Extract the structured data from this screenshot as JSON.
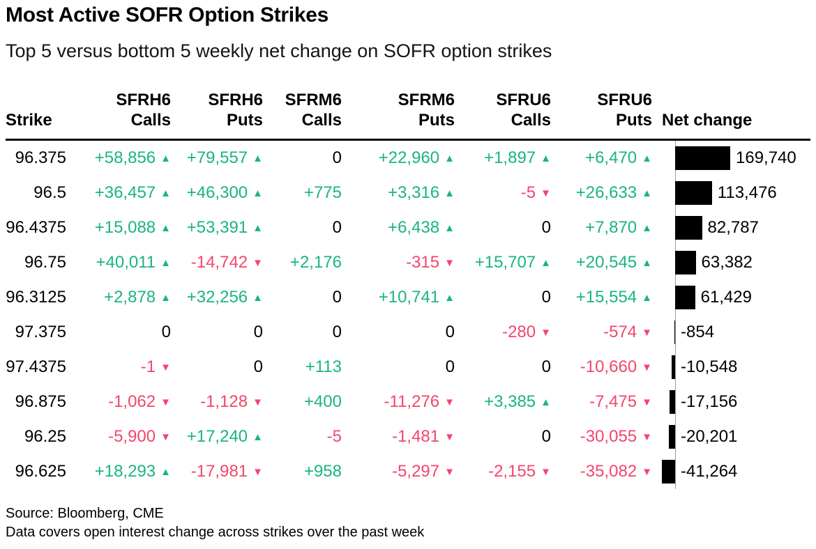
{
  "title": "Most Active SOFR Option Strikes",
  "subtitle": "Top 5 versus bottom 5 weekly net change on SOFR option strikes",
  "footer": {
    "source": "Source: Bloomberg, CME",
    "note": "Data covers open interest change across strikes over the past week"
  },
  "colors": {
    "positive": "#1ab57d",
    "negative": "#f4456b",
    "bar": "#000000",
    "axis": "#9a9a9a"
  },
  "glyphs": {
    "up": "▲",
    "down": "▼"
  },
  "table": {
    "columns": [
      {
        "id": "strike",
        "label": "Strike",
        "align": "left"
      },
      {
        "id": "sfrh6-calls",
        "top": "SFRH6",
        "label": "Calls"
      },
      {
        "id": "sfrh6-puts",
        "top": "SFRH6",
        "label": "Puts"
      },
      {
        "id": "sfrm6-calls",
        "top": "SFRM6",
        "label": "Calls"
      },
      {
        "id": "sfrm6-puts",
        "top": "SFRM6",
        "label": "Puts"
      },
      {
        "id": "sfru6-calls",
        "top": "SFRU6",
        "label": "Calls"
      },
      {
        "id": "sfru6-puts",
        "top": "SFRU6",
        "label": "Puts"
      },
      {
        "id": "net-change",
        "label": "Net change",
        "align": "net"
      }
    ],
    "rows": [
      {
        "strike": "96.375",
        "cells": [
          {
            "t": "+58,856",
            "tone": "pos",
            "a": "up"
          },
          {
            "t": "+79,557",
            "tone": "pos",
            "a": "up"
          },
          {
            "t": "0",
            "tone": "zero"
          },
          {
            "t": "+22,960",
            "tone": "pos",
            "a": "up"
          },
          {
            "t": "+1,897",
            "tone": "pos",
            "a": "up"
          },
          {
            "t": "+6,470",
            "tone": "pos",
            "a": "up"
          }
        ],
        "net": {
          "value": 169740,
          "label": "169,740"
        }
      },
      {
        "strike": "96.5",
        "cells": [
          {
            "t": "+36,457",
            "tone": "pos",
            "a": "up"
          },
          {
            "t": "+46,300",
            "tone": "pos",
            "a": "up"
          },
          {
            "t": "+775",
            "tone": "pos"
          },
          {
            "t": "+3,316",
            "tone": "pos",
            "a": "up"
          },
          {
            "t": "-5",
            "tone": "neg",
            "a": "down"
          },
          {
            "t": "+26,633",
            "tone": "pos",
            "a": "up"
          }
        ],
        "net": {
          "value": 113476,
          "label": "113,476"
        }
      },
      {
        "strike": "96.4375",
        "cells": [
          {
            "t": "+15,088",
            "tone": "pos",
            "a": "up"
          },
          {
            "t": "+53,391",
            "tone": "pos",
            "a": "up"
          },
          {
            "t": "0",
            "tone": "zero"
          },
          {
            "t": "+6,438",
            "tone": "pos",
            "a": "up"
          },
          {
            "t": "0",
            "tone": "zero"
          },
          {
            "t": "+7,870",
            "tone": "pos",
            "a": "up"
          }
        ],
        "net": {
          "value": 82787,
          "label": "82,787"
        }
      },
      {
        "strike": "96.75",
        "cells": [
          {
            "t": "+40,011",
            "tone": "pos",
            "a": "up"
          },
          {
            "t": "-14,742",
            "tone": "neg",
            "a": "down"
          },
          {
            "t": "+2,176",
            "tone": "pos"
          },
          {
            "t": "-315",
            "tone": "neg",
            "a": "down"
          },
          {
            "t": "+15,707",
            "tone": "pos",
            "a": "up"
          },
          {
            "t": "+20,545",
            "tone": "pos",
            "a": "up"
          }
        ],
        "net": {
          "value": 63382,
          "label": "63,382"
        }
      },
      {
        "strike": "96.3125",
        "cells": [
          {
            "t": "+2,878",
            "tone": "pos",
            "a": "up"
          },
          {
            "t": "+32,256",
            "tone": "pos",
            "a": "up"
          },
          {
            "t": "0",
            "tone": "zero"
          },
          {
            "t": "+10,741",
            "tone": "pos",
            "a": "up"
          },
          {
            "t": "0",
            "tone": "zero"
          },
          {
            "t": "+15,554",
            "tone": "pos",
            "a": "up"
          }
        ],
        "net": {
          "value": 61429,
          "label": "61,429"
        }
      },
      {
        "strike": "97.375",
        "cells": [
          {
            "t": "0",
            "tone": "zero"
          },
          {
            "t": "0",
            "tone": "zero"
          },
          {
            "t": "0",
            "tone": "zero"
          },
          {
            "t": "0",
            "tone": "zero"
          },
          {
            "t": "-280",
            "tone": "neg",
            "a": "down"
          },
          {
            "t": "-574",
            "tone": "neg",
            "a": "down"
          }
        ],
        "net": {
          "value": -854,
          "label": "-854"
        }
      },
      {
        "strike": "97.4375",
        "cells": [
          {
            "t": "-1",
            "tone": "neg",
            "a": "down"
          },
          {
            "t": "0",
            "tone": "zero"
          },
          {
            "t": "+113",
            "tone": "pos"
          },
          {
            "t": "0",
            "tone": "zero"
          },
          {
            "t": "0",
            "tone": "zero"
          },
          {
            "t": "-10,660",
            "tone": "neg",
            "a": "down"
          }
        ],
        "net": {
          "value": -10548,
          "label": "-10,548"
        }
      },
      {
        "strike": "96.875",
        "cells": [
          {
            "t": "-1,062",
            "tone": "neg",
            "a": "down"
          },
          {
            "t": "-1,128",
            "tone": "neg",
            "a": "down"
          },
          {
            "t": "+400",
            "tone": "pos"
          },
          {
            "t": "-11,276",
            "tone": "neg",
            "a": "down"
          },
          {
            "t": "+3,385",
            "tone": "pos",
            "a": "up"
          },
          {
            "t": "-7,475",
            "tone": "neg",
            "a": "down"
          }
        ],
        "net": {
          "value": -17156,
          "label": "-17,156"
        }
      },
      {
        "strike": "96.25",
        "cells": [
          {
            "t": "-5,900",
            "tone": "neg",
            "a": "down"
          },
          {
            "t": "+17,240",
            "tone": "pos",
            "a": "up"
          },
          {
            "t": "-5",
            "tone": "neg"
          },
          {
            "t": "-1,481",
            "tone": "neg",
            "a": "down"
          },
          {
            "t": "0",
            "tone": "zero"
          },
          {
            "t": "-30,055",
            "tone": "neg",
            "a": "down"
          }
        ],
        "net": {
          "value": -20201,
          "label": "-20,201"
        }
      },
      {
        "strike": "96.625",
        "cells": [
          {
            "t": "+18,293",
            "tone": "pos",
            "a": "up"
          },
          {
            "t": "-17,981",
            "tone": "neg",
            "a": "down"
          },
          {
            "t": "+958",
            "tone": "pos"
          },
          {
            "t": "-5,297",
            "tone": "neg",
            "a": "down"
          },
          {
            "t": "-2,155",
            "tone": "neg",
            "a": "down"
          },
          {
            "t": "-35,082",
            "tone": "neg",
            "a": "down"
          }
        ],
        "net": {
          "value": -41264,
          "label": "-41,264"
        }
      }
    ]
  },
  "chart_data": {
    "type": "table",
    "title": "Most Active SOFR Option Strikes",
    "subtitle": "Top 5 versus bottom 5 weekly net change on SOFR option strikes",
    "columns": [
      "Strike",
      "SFRH6 Calls",
      "SFRH6 Puts",
      "SFRM6 Calls",
      "SFRM6 Puts",
      "SFRU6 Calls",
      "SFRU6 Puts",
      "Net change"
    ],
    "rows": [
      [
        96.375,
        58856,
        79557,
        0,
        22960,
        1897,
        6470,
        169740
      ],
      [
        96.5,
        36457,
        46300,
        775,
        3316,
        -5,
        26633,
        113476
      ],
      [
        96.4375,
        15088,
        53391,
        0,
        6438,
        0,
        7870,
        82787
      ],
      [
        96.75,
        40011,
        -14742,
        2176,
        -315,
        15707,
        20545,
        63382
      ],
      [
        96.3125,
        2878,
        32256,
        0,
        10741,
        0,
        15554,
        61429
      ],
      [
        97.375,
        0,
        0,
        0,
        0,
        -280,
        -574,
        -854
      ],
      [
        97.4375,
        -1,
        0,
        113,
        0,
        0,
        -10660,
        -10548
      ],
      [
        96.875,
        -1062,
        -1128,
        400,
        -11276,
        3385,
        -7475,
        -17156
      ],
      [
        96.25,
        -5900,
        17240,
        -5,
        -1481,
        0,
        -30055,
        -20201
      ],
      [
        96.625,
        18293,
        -17981,
        958,
        -5297,
        -2155,
        -35082,
        -41264
      ]
    ],
    "net_change_bar": {
      "type": "bar",
      "orientation": "horizontal",
      "values": [
        169740,
        113476,
        82787,
        63382,
        61429,
        -854,
        -10548,
        -17156,
        -20201,
        -41264
      ],
      "axis_range": [
        -41264,
        169740
      ],
      "bar_color": "#000000"
    },
    "source": "Source: Bloomberg, CME",
    "note": "Data covers open interest change across strikes over the past week"
  }
}
